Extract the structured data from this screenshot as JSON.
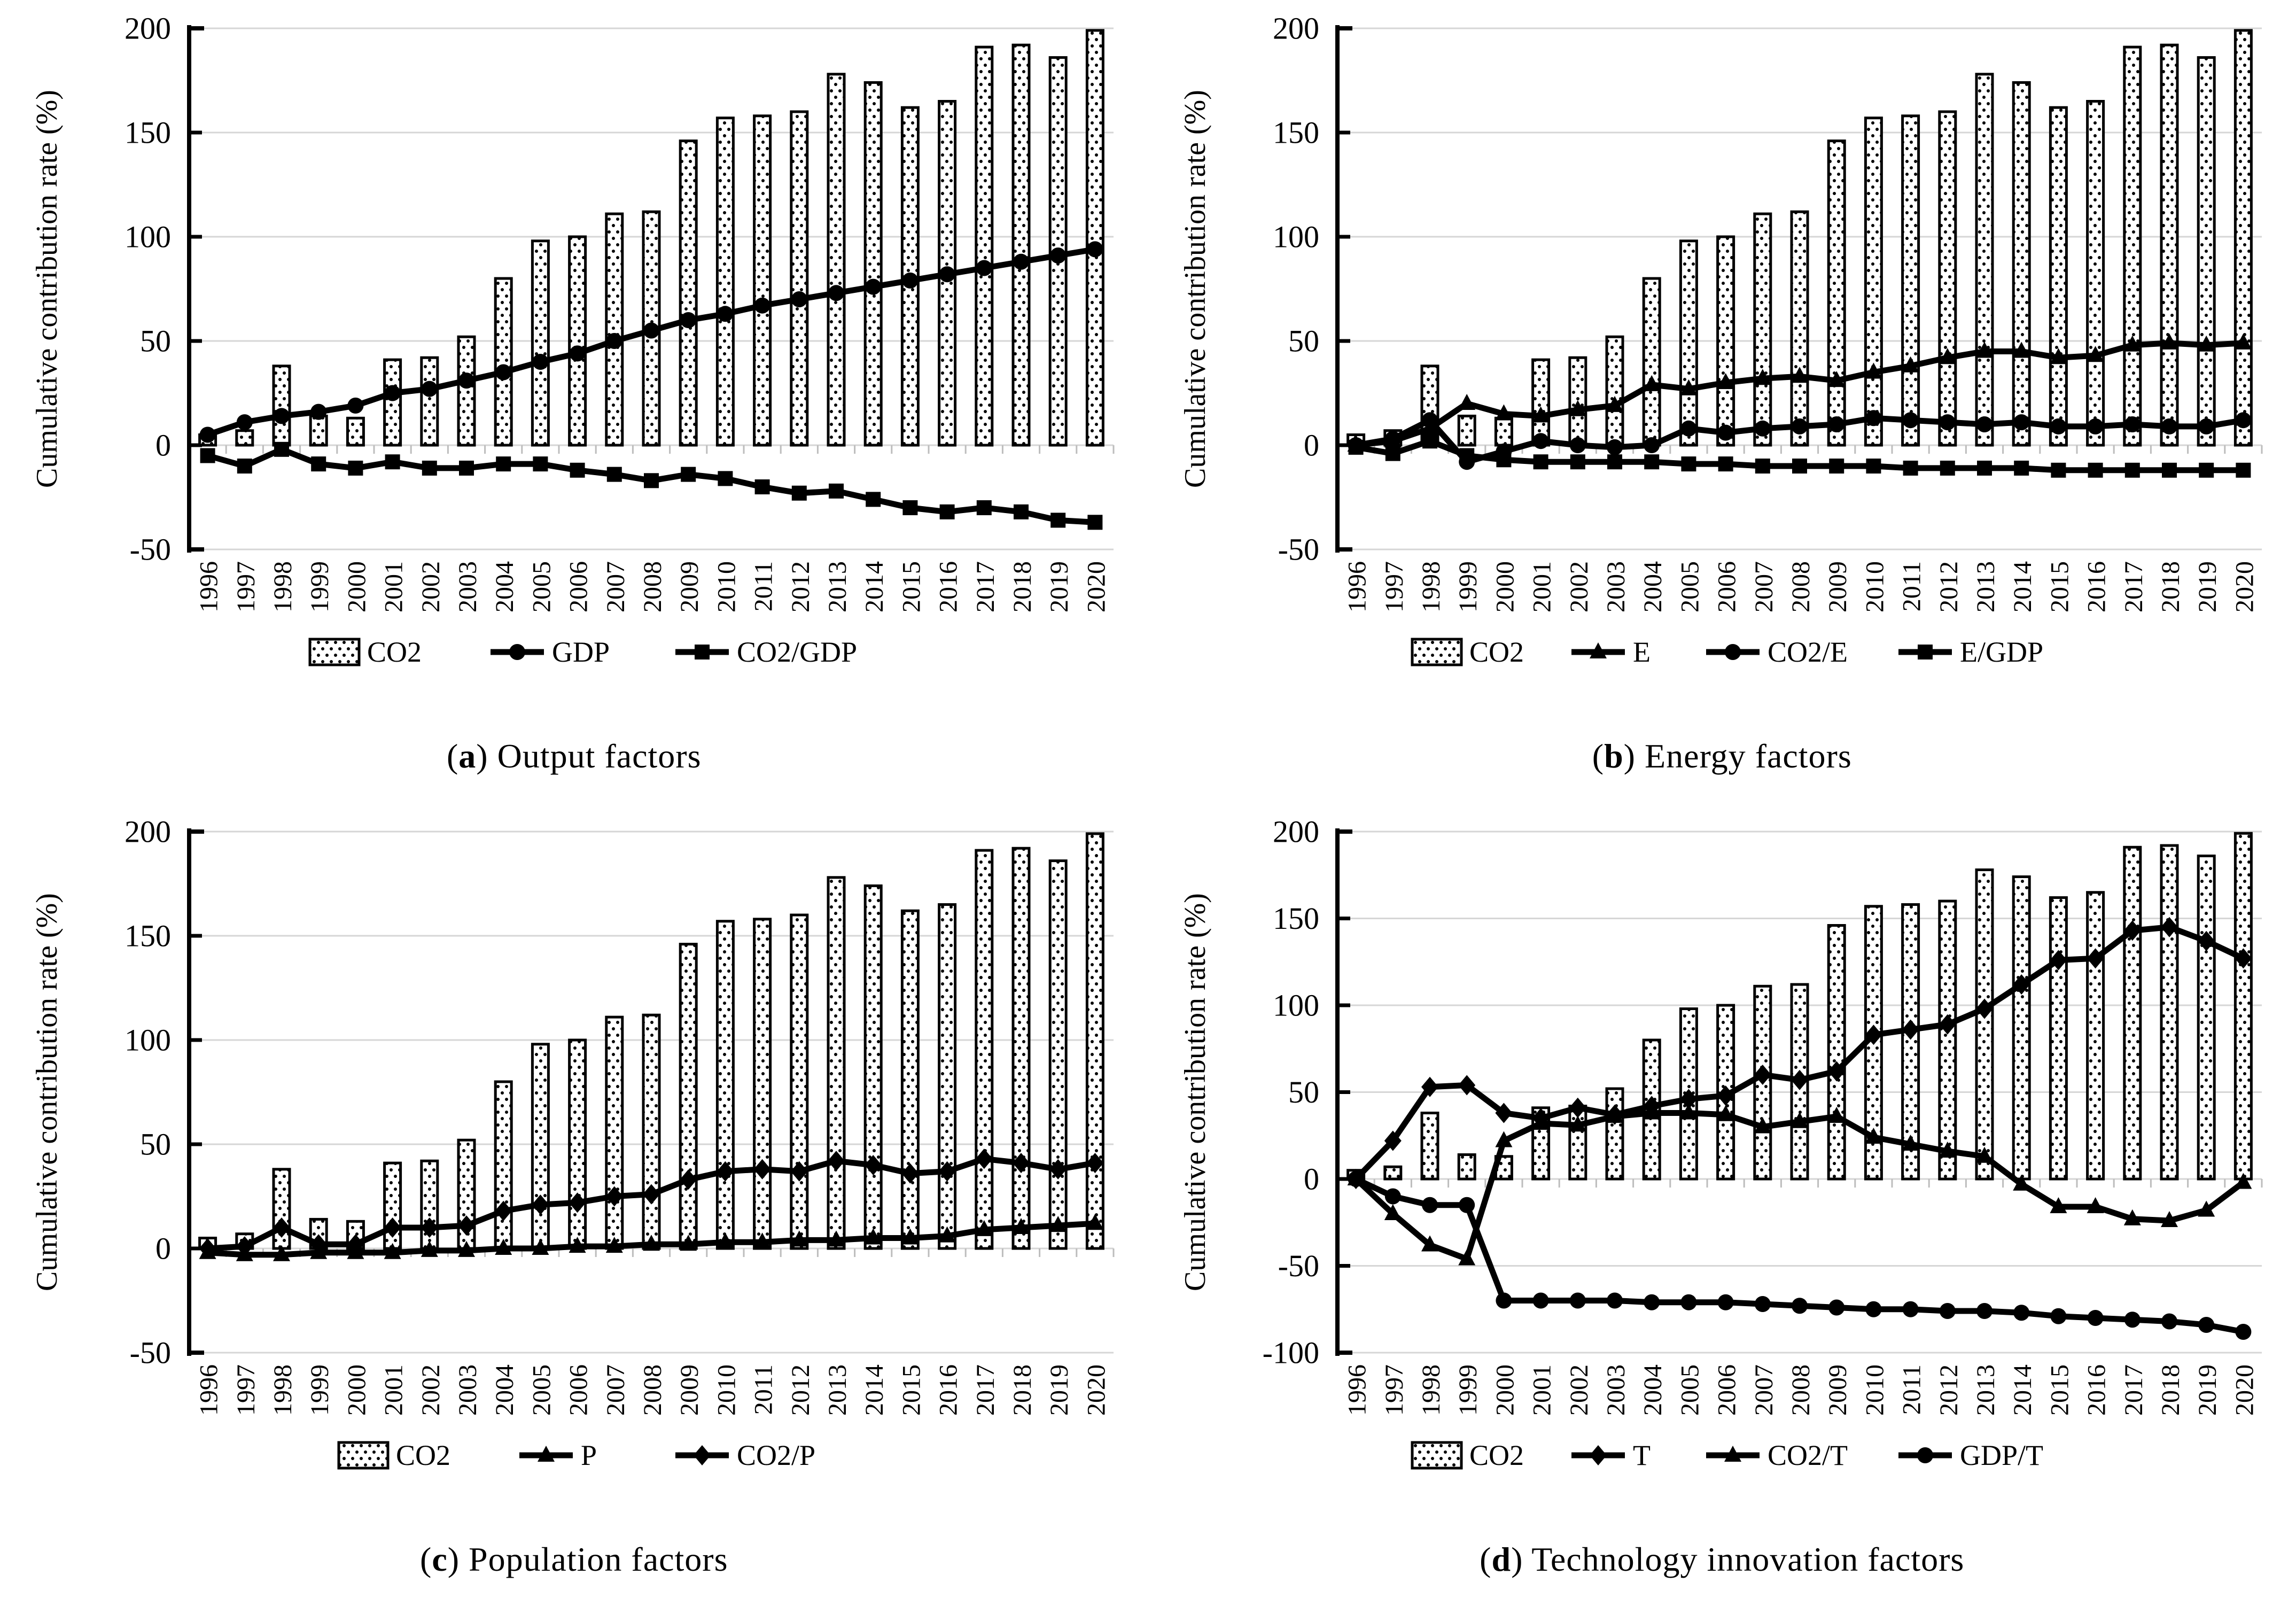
{
  "page": {
    "background": "#ffffff"
  },
  "colors": {
    "ink": "#000000",
    "grid": "#d6d6d6",
    "category_tick": "#bdbdbd",
    "bar_fill": "#ffffff",
    "bar_dot": "#000000"
  },
  "chart_data": [
    {
      "type": "bar",
      "subtype": "composite-bar-line",
      "caption": {
        "open": "(",
        "letter": "a",
        "close": ") ",
        "label": "Output factors"
      },
      "ylabel": "Cumulative contribution rate (%)",
      "ylim": [
        -50,
        200
      ],
      "yticks": [
        200,
        150,
        100,
        50,
        0,
        -50
      ],
      "grid": true,
      "legend_position": "bottom",
      "categories": [
        "1996",
        "1997",
        "1998",
        "1999",
        "2000",
        "2001",
        "2002",
        "2003",
        "2004",
        "2005",
        "2006",
        "2007",
        "2008",
        "2009",
        "2010",
        "2011",
        "2012",
        "2013",
        "2014",
        "2015",
        "2016",
        "2017",
        "2018",
        "2019",
        "2020"
      ],
      "bar_series": {
        "name": "CO2",
        "pattern": "dotted",
        "values": [
          5,
          7,
          38,
          14,
          13,
          41,
          42,
          52,
          80,
          98,
          100,
          111,
          112,
          146,
          157,
          158,
          160,
          178,
          174,
          162,
          165,
          191,
          192,
          186,
          199
        ]
      },
      "line_series": [
        {
          "name": "GDP",
          "marker": "circle",
          "values": [
            5,
            11,
            14,
            16,
            19,
            25,
            27,
            31,
            35,
            40,
            44,
            50,
            55,
            60,
            63,
            67,
            70,
            73,
            76,
            79,
            82,
            85,
            88,
            91,
            94
          ]
        },
        {
          "name": "CO2/GDP",
          "marker": "square",
          "values": [
            -5,
            -10,
            -2,
            -9,
            -11,
            -8,
            -11,
            -11,
            -9,
            -9,
            -12,
            -14,
            -17,
            -14,
            -16,
            -20,
            -23,
            -22,
            -26,
            -30,
            -32,
            -30,
            -32,
            -36,
            -37
          ]
        }
      ]
    },
    {
      "type": "bar",
      "subtype": "composite-bar-line",
      "caption": {
        "open": "(",
        "letter": "b",
        "close": ") ",
        "label": "Energy factors"
      },
      "ylabel": "Cumulative contribution rate (%)",
      "ylim": [
        -50,
        200
      ],
      "yticks": [
        200,
        150,
        100,
        50,
        0,
        -50
      ],
      "grid": true,
      "legend_position": "bottom",
      "categories": [
        "1996",
        "1997",
        "1998",
        "1999",
        "2000",
        "2001",
        "2002",
        "2003",
        "2004",
        "2005",
        "2006",
        "2007",
        "2008",
        "2009",
        "2010",
        "2011",
        "2012",
        "2013",
        "2014",
        "2015",
        "2016",
        "2017",
        "2018",
        "2019",
        "2020"
      ],
      "bar_series": {
        "name": "CO2",
        "pattern": "dotted",
        "values": [
          5,
          7,
          38,
          14,
          13,
          41,
          42,
          52,
          80,
          98,
          100,
          111,
          112,
          146,
          157,
          158,
          160,
          178,
          174,
          162,
          165,
          191,
          192,
          186,
          199
        ]
      },
      "line_series": [
        {
          "name": "E",
          "marker": "triangle",
          "values": [
            0,
            2,
            8,
            20,
            15,
            14,
            17,
            19,
            29,
            27,
            30,
            32,
            33,
            31,
            35,
            38,
            42,
            45,
            45,
            42,
            43,
            48,
            49,
            48,
            49
          ]
        },
        {
          "name": "CO2/E",
          "marker": "circle",
          "values": [
            0,
            3,
            12,
            -8,
            -3,
            2,
            0,
            -1,
            0,
            8,
            6,
            8,
            9,
            10,
            13,
            12,
            11,
            10,
            11,
            9,
            9,
            10,
            9,
            9,
            12
          ]
        },
        {
          "name": "E/GDP",
          "marker": "square",
          "values": [
            -1,
            -4,
            2,
            -5,
            -7,
            -8,
            -8,
            -8,
            -8,
            -9,
            -9,
            -10,
            -10,
            -10,
            -10,
            -11,
            -11,
            -11,
            -11,
            -12,
            -12,
            -12,
            -12,
            -12,
            -12
          ]
        }
      ]
    },
    {
      "type": "bar",
      "subtype": "composite-bar-line",
      "caption": {
        "open": "(",
        "letter": "c",
        "close": ") ",
        "label": "Population factors"
      },
      "ylabel": "Cumulative contribution rate (%)",
      "ylim": [
        -50,
        200
      ],
      "yticks": [
        200,
        150,
        100,
        50,
        0,
        -50
      ],
      "grid": true,
      "legend_position": "bottom",
      "categories": [
        "1996",
        "1997",
        "1998",
        "1999",
        "2000",
        "2001",
        "2002",
        "2003",
        "2004",
        "2005",
        "2006",
        "2007",
        "2008",
        "2009",
        "2010",
        "2011",
        "2012",
        "2013",
        "2014",
        "2015",
        "2016",
        "2017",
        "2018",
        "2019",
        "2020"
      ],
      "bar_series": {
        "name": "CO2",
        "pattern": "dotted",
        "values": [
          5,
          7,
          38,
          14,
          13,
          41,
          42,
          52,
          80,
          98,
          100,
          111,
          112,
          146,
          157,
          158,
          160,
          178,
          174,
          162,
          165,
          191,
          192,
          186,
          199
        ]
      },
      "line_series": [
        {
          "name": "P",
          "marker": "triangle",
          "values": [
            -2,
            -3,
            -3,
            -2,
            -2,
            -2,
            -1,
            -1,
            0,
            0,
            1,
            1,
            2,
            2,
            3,
            3,
            4,
            4,
            5,
            5,
            6,
            9,
            10,
            11,
            12
          ]
        },
        {
          "name": "CO2/P",
          "marker": "diamond",
          "values": [
            0,
            1,
            10,
            2,
            2,
            10,
            10,
            11,
            18,
            21,
            22,
            25,
            26,
            33,
            37,
            38,
            37,
            42,
            40,
            36,
            37,
            43,
            41,
            38,
            41
          ]
        }
      ]
    },
    {
      "type": "bar",
      "subtype": "composite-bar-line",
      "caption": {
        "open": "(",
        "letter": "d",
        "close": ") ",
        "label": "Technology innovation factors"
      },
      "ylabel": "Cumulative contribution rate (%)",
      "ylim": [
        -100,
        200
      ],
      "yticks": [
        200,
        150,
        100,
        50,
        0,
        -50,
        -100
      ],
      "grid": true,
      "legend_position": "bottom",
      "categories": [
        "1996",
        "1997",
        "1998",
        "1999",
        "2000",
        "2001",
        "2002",
        "2003",
        "2004",
        "2005",
        "2006",
        "2007",
        "2008",
        "2009",
        "2010",
        "2011",
        "2012",
        "2013",
        "2014",
        "2015",
        "2016",
        "2017",
        "2018",
        "2019",
        "2020"
      ],
      "bar_series": {
        "name": "CO2",
        "pattern": "dotted",
        "values": [
          5,
          7,
          38,
          14,
          13,
          41,
          42,
          52,
          80,
          98,
          100,
          111,
          112,
          146,
          157,
          158,
          160,
          178,
          174,
          162,
          165,
          191,
          192,
          186,
          199
        ]
      },
      "line_series": [
        {
          "name": "T",
          "marker": "diamond",
          "values": [
            0,
            22,
            53,
            54,
            38,
            35,
            41,
            37,
            42,
            46,
            48,
            60,
            57,
            62,
            83,
            86,
            89,
            98,
            112,
            126,
            127,
            143,
            145,
            137,
            127
          ]
        },
        {
          "name": "CO2/T",
          "marker": "triangle",
          "values": [
            0,
            -20,
            -38,
            -46,
            22,
            32,
            31,
            36,
            38,
            38,
            37,
            30,
            33,
            36,
            24,
            20,
            16,
            13,
            -3,
            -16,
            -16,
            -23,
            -24,
            -18,
            -2
          ]
        },
        {
          "name": "GDP/T",
          "marker": "circle",
          "values": [
            0,
            -10,
            -15,
            -15,
            -70,
            -70,
            -70,
            -70,
            -71,
            -71,
            -71,
            -72,
            -73,
            -74,
            -75,
            -75,
            -76,
            -76,
            -77,
            -79,
            -80,
            -81,
            -82,
            -84,
            -88
          ]
        }
      ]
    }
  ]
}
